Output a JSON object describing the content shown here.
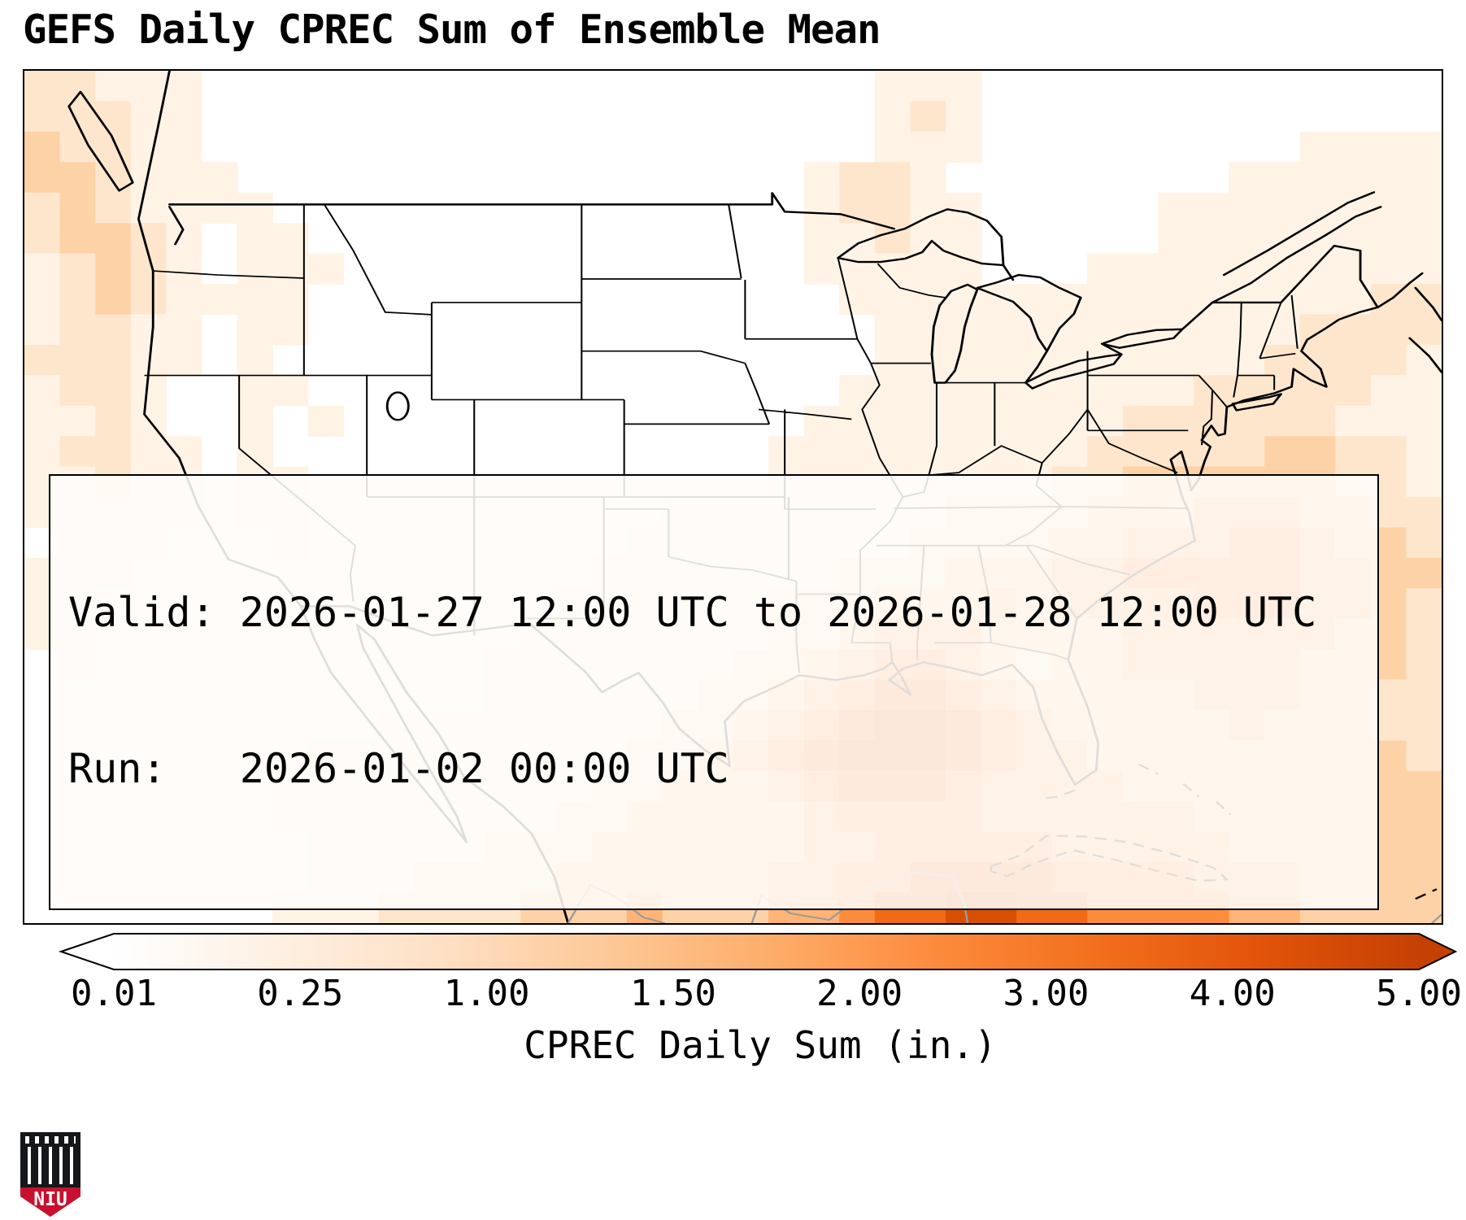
{
  "title": "GEFS Daily CPREC Sum of Ensemble Mean",
  "info_box": {
    "line1": "Valid: 2026-01-27 12:00 UTC to 2026-01-28 12:00 UTC",
    "line2": "Run:   2026-01-02 00:00 UTC"
  },
  "colorbar": {
    "label": "CPREC Daily Sum (in.)",
    "ticks": [
      "0.01",
      "0.25",
      "1.00",
      "1.50",
      "2.00",
      "3.00",
      "4.00",
      "5.00"
    ],
    "gradient": [
      "#ffffff",
      "#fef0e2",
      "#fee0c5",
      "#fdc998",
      "#fdae6b",
      "#fd8c3e",
      "#f2701d",
      "#e2540a",
      "#c54103"
    ]
  },
  "logo": {
    "text": "NIU"
  },
  "chart_data": {
    "type": "heatmap",
    "title": "GEFS Daily CPREC Sum of Ensemble Mean",
    "variable": "CPREC Daily Sum",
    "units": "in.",
    "valid": "2026-01-27 12:00 UTC to 2026-01-28 12:00 UTC",
    "run": "2026-01-02 00:00 UTC",
    "colorbar_ticks": [
      0.01,
      0.25,
      1.0,
      1.5,
      2.0,
      3.0,
      4.0,
      5.0
    ],
    "levels": [
      "<0.01",
      "0.01-0.25",
      "0.25-1.00",
      "1.00-1.50",
      "1.50-2.00",
      "2.00-3.00",
      "3.00-4.00",
      "4.00-5.00"
    ],
    "palette": [
      "#ffffff",
      "#fff3e6",
      "#fee6cd",
      "#fdd2a6",
      "#fdb476",
      "#fd8d3c",
      "#f16b16",
      "#d94f02",
      "#a63603"
    ],
    "grid": {
      "cols": 40,
      "rows": 28,
      "note": "digit = precipitation band index into palette/levels; CONUS domain, row 0 = north (~54N), col 0 = west (~130W)",
      "rows_encoded": [
        "2211100000000000000000001110000000000000",
        "2221100000000000000000001210000000000000",
        "3221100000000000000000001110000000001111",
        "3321110000000000000000122100000000111111",
        "2321111000000000000000122110000011111111",
        "2332101100000000000000112110000011111111",
        "1232101110000000000000111110001111111111",
        "1232111100000000000000011111111111111122",
        "1221101100000000000000001111111111112222",
        "2221101000000000000000001111111111122221",
        "1221001100000000000000011111111112222211",
        "1121001010000000000000111111111222222111",
        "1221101000000000000001111111112222233221",
        "1121101100000000000001111111122333333221",
        "1111101100000000001111111122223334443322",
        "0111000100000000011111111222233444554332",
        "1110000000000000111111122233344555554433",
        "1100000000000001111112223334344445554432",
        "1100000000000011111112234443333444444332",
        "0100000000000111111122345543233444443332",
        "0000000000000111111223456654333334443322",
        "0000000000111111112234567765433333433322",
        "0000000011111111122345677765443333333332",
        "0000000111111111223334566654444333333333",
        "0000000111111112233333455554444443333333",
        "0000000011111222333333445555544444333333",
        "0000000011122223333334455666655554443333",
        "0000000111222233343334456677665555443333"
      ]
    }
  }
}
